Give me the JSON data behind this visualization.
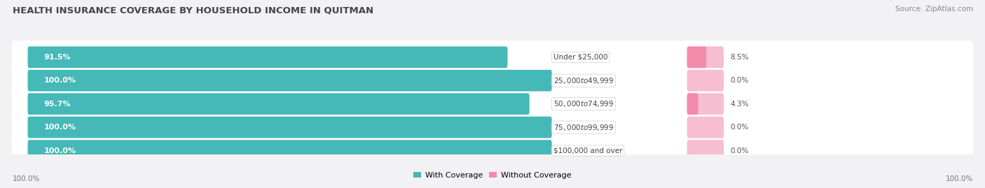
{
  "title": "HEALTH INSURANCE COVERAGE BY HOUSEHOLD INCOME IN QUITMAN",
  "source": "Source: ZipAtlas.com",
  "categories": [
    "Under $25,000",
    "$25,000 to $49,999",
    "$50,000 to $74,999",
    "$75,000 to $99,999",
    "$100,000 and over"
  ],
  "with_coverage": [
    91.5,
    100.0,
    95.7,
    100.0,
    100.0
  ],
  "without_coverage": [
    8.5,
    0.0,
    4.3,
    0.0,
    0.0
  ],
  "color_with": "#45b8b8",
  "color_without": "#f48aab",
  "color_without_pale": "#f7bdd0",
  "row_bg": "#e8e8ee",
  "fig_bg": "#f2f2f5",
  "title_color": "#444444",
  "source_color": "#888888",
  "label_color": "#444444",
  "value_color": "#555555",
  "footer_color": "#777777",
  "title_fontsize": 9.5,
  "bar_label_fontsize": 8,
  "cat_label_fontsize": 7.5,
  "value_fontsize": 7.5,
  "legend_fontsize": 8,
  "footer_fontsize": 7.5,
  "source_fontsize": 7.5
}
